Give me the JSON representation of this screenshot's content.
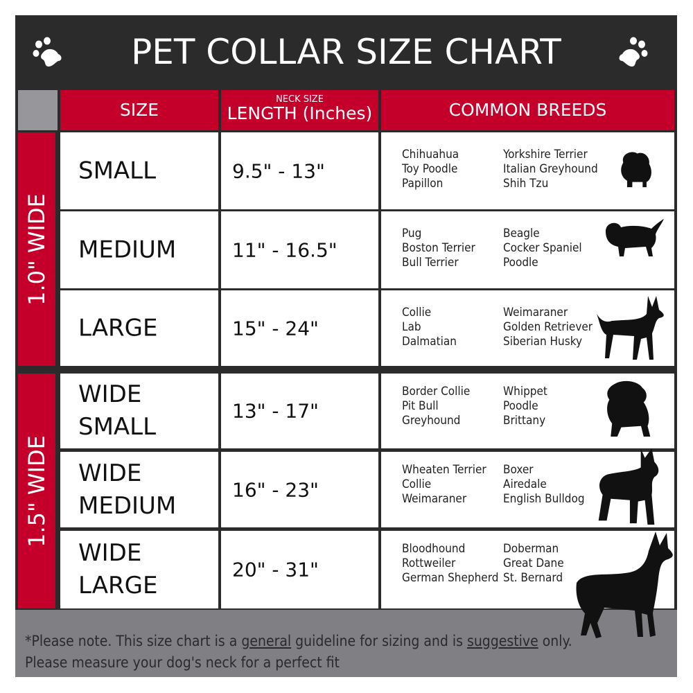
{
  "title": "PET COLLAR SIZE CHART",
  "icons": {
    "left": "paw-print-icon",
    "right": "paw-print-icon"
  },
  "colors": {
    "title_bar": "#2b2b2b",
    "accent_red": "#c4002a",
    "footer": "#808084"
  },
  "headers": {
    "size": "SIZE",
    "length_small": "NECK SIZE",
    "length": "LENGTH (Inches)",
    "breeds": "COMMON BREEDS"
  },
  "groups": [
    "1.0\" WIDE",
    "1.5\" WIDE"
  ],
  "rows": [
    {
      "size": "SMALL",
      "length": "9.5\" - 13\"",
      "breeds_a": [
        "Chihuahua",
        "Toy Poodle",
        "Papillon"
      ],
      "breeds_b": [
        "Yorkshire Terrier",
        "Italian Greyhound",
        "Shih Tzu"
      ],
      "icon": "small-dog-silhouette-icon"
    },
    {
      "size": "MEDIUM",
      "length": "11\" - 16.5\"",
      "breeds_a": [
        "Pug",
        "Boston Terrier",
        "Bull Terrier"
      ],
      "breeds_b": [
        "Beagle",
        "Cocker Spaniel",
        "Poodle"
      ],
      "icon": "medium-dog-silhouette-icon"
    },
    {
      "size": "LARGE",
      "length": "15\" - 24\"",
      "breeds_a": [
        "Collie",
        "Lab",
        "Dalmatian"
      ],
      "breeds_b": [
        "Weimaraner",
        "Golden Retriever",
        "Siberian Husky"
      ],
      "icon": "large-dog-silhouette-icon"
    },
    {
      "size": "WIDE SMALL",
      "length": "13\" - 17\"",
      "breeds_a": [
        "Border Collie",
        "Pit Bull",
        "Greyhound"
      ],
      "breeds_b": [
        "Whippet",
        "Poodle",
        "Brittany"
      ],
      "icon": "bulldog-silhouette-icon"
    },
    {
      "size": "WIDE MEDIUM",
      "length": "16\" - 23\"",
      "breeds_a": [
        "Wheaten Terrier",
        "Collie",
        "Weimaraner"
      ],
      "breeds_b": [
        "Boxer",
        "Airedale",
        "English Bulldog"
      ],
      "icon": "pitbull-silhouette-icon"
    },
    {
      "size": "WIDE LARGE",
      "length": "20\" - 31\"",
      "breeds_a": [
        "Bloodhound",
        "Rottweiler",
        "German Shepherd"
      ],
      "breeds_b": [
        "Doberman",
        "Great Dane",
        "St. Bernard"
      ],
      "icon": "doberman-silhouette-icon"
    }
  ],
  "footer": {
    "note_1": "*Please note. This size chart is a",
    "note_u1": "general",
    "note_2": "guideline for sizing and is",
    "note_u2": "suggestive",
    "note_3": "only.",
    "note_line2": "Please measure your dog's neck for a perfect fit"
  }
}
